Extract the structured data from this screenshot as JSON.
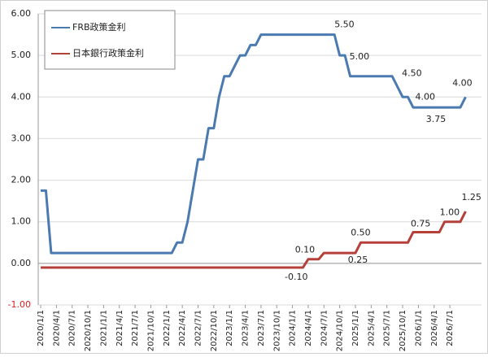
{
  "chart_data": {
    "type": "line",
    "categories": [
      "2020/1/1",
      null,
      null,
      "2020/4/1",
      null,
      null,
      "2020/7/1",
      null,
      null,
      "2020/10/1",
      null,
      null,
      "2021/1/1",
      null,
      null,
      "2021/4/1",
      null,
      null,
      "2021/7/1",
      null,
      null,
      "2021/10/1",
      null,
      null,
      "2022/1/1",
      null,
      null,
      "2022/4/1",
      null,
      null,
      "2022/7/1",
      null,
      null,
      "2022/10/1",
      null,
      null,
      "2023/1/1",
      null,
      null,
      "2023/4/1",
      null,
      null,
      "2023/7/1",
      null,
      null,
      "2023/10/1",
      null,
      null,
      "2024/1/1",
      null,
      null,
      "2024/4/1",
      null,
      null,
      "2024/7/1",
      null,
      null,
      "2024/10/1",
      null,
      null,
      "2025/1/1",
      null,
      null,
      "2025/4/1",
      null,
      null,
      "2025/7/1",
      null,
      null,
      "2025/10/1",
      null,
      null,
      "2026/1/1",
      null,
      null,
      "2026/4/1",
      null,
      null,
      "2026/7/1",
      null,
      null,
      null
    ],
    "series": [
      {
        "name": "FRB政策金利",
        "color": "#4a7ab0",
        "values": [
          1.75,
          1.75,
          0.25,
          0.25,
          0.25,
          0.25,
          0.25,
          0.25,
          0.25,
          0.25,
          0.25,
          0.25,
          0.25,
          0.25,
          0.25,
          0.25,
          0.25,
          0.25,
          0.25,
          0.25,
          0.25,
          0.25,
          0.25,
          0.25,
          0.25,
          0.25,
          0.5,
          0.5,
          1.0,
          1.75,
          2.5,
          2.5,
          3.25,
          3.25,
          4.0,
          4.5,
          4.5,
          4.75,
          5.0,
          5.0,
          5.25,
          5.25,
          5.5,
          5.5,
          5.5,
          5.5,
          5.5,
          5.5,
          5.5,
          5.5,
          5.5,
          5.5,
          5.5,
          5.5,
          5.5,
          5.5,
          5.5,
          5.0,
          5.0,
          4.5,
          4.5,
          4.5,
          4.5,
          4.5,
          4.5,
          4.5,
          4.5,
          4.5,
          4.25,
          4.0,
          4.0,
          3.75,
          3.75,
          3.75,
          3.75,
          3.75,
          3.75,
          3.75,
          3.75,
          3.75,
          3.75,
          4.0
        ],
        "value_labels": [
          null,
          null,
          null,
          null,
          null,
          null,
          null,
          null,
          null,
          null,
          null,
          null,
          null,
          null,
          null,
          null,
          null,
          null,
          null,
          null,
          null,
          null,
          null,
          null,
          null,
          null,
          null,
          null,
          null,
          null,
          null,
          null,
          null,
          null,
          null,
          null,
          null,
          null,
          null,
          null,
          null,
          null,
          null,
          null,
          null,
          null,
          null,
          null,
          null,
          null,
          null,
          null,
          null,
          null,
          null,
          null,
          "5.50",
          "5.00",
          null,
          null,
          null,
          null,
          null,
          null,
          null,
          null,
          null,
          "4.50",
          null,
          null,
          "4.00",
          null,
          null,
          null,
          null,
          "3.75",
          null,
          null,
          null,
          null,
          null,
          "4.00"
        ]
      },
      {
        "name": "日本銀行政策金利",
        "color": "#b5403a",
        "values": [
          -0.1,
          -0.1,
          -0.1,
          -0.1,
          -0.1,
          -0.1,
          -0.1,
          -0.1,
          -0.1,
          -0.1,
          -0.1,
          -0.1,
          -0.1,
          -0.1,
          -0.1,
          -0.1,
          -0.1,
          -0.1,
          -0.1,
          -0.1,
          -0.1,
          -0.1,
          -0.1,
          -0.1,
          -0.1,
          -0.1,
          -0.1,
          -0.1,
          -0.1,
          -0.1,
          -0.1,
          -0.1,
          -0.1,
          -0.1,
          -0.1,
          -0.1,
          -0.1,
          -0.1,
          -0.1,
          -0.1,
          -0.1,
          -0.1,
          -0.1,
          -0.1,
          -0.1,
          -0.1,
          -0.1,
          -0.1,
          -0.1,
          -0.1,
          -0.1,
          0.1,
          0.1,
          0.1,
          0.25,
          0.25,
          0.25,
          0.25,
          0.25,
          0.25,
          0.25,
          0.5,
          0.5,
          0.5,
          0.5,
          0.5,
          0.5,
          0.5,
          0.5,
          0.5,
          0.5,
          0.75,
          0.75,
          0.75,
          0.75,
          0.75,
          0.75,
          1.0,
          1.0,
          1.0,
          1.0,
          1.25
        ],
        "value_labels": [
          null,
          null,
          null,
          null,
          null,
          null,
          null,
          null,
          null,
          null,
          null,
          null,
          null,
          null,
          null,
          null,
          null,
          null,
          null,
          null,
          null,
          null,
          null,
          null,
          null,
          null,
          null,
          null,
          null,
          null,
          null,
          null,
          null,
          null,
          null,
          null,
          null,
          null,
          null,
          null,
          null,
          null,
          null,
          null,
          null,
          null,
          null,
          null,
          null,
          null,
          "-0.10",
          "0.10",
          null,
          null,
          null,
          null,
          null,
          null,
          null,
          null,
          "0.25",
          "0.50",
          null,
          null,
          null,
          null,
          null,
          null,
          null,
          null,
          null,
          "0.75",
          null,
          null,
          null,
          null,
          null,
          "1.00",
          null,
          null,
          null,
          "1.25"
        ]
      }
    ],
    "ylim": [
      -1,
      6
    ],
    "yticks": [
      {
        "value": -1,
        "label": "-1.00"
      },
      {
        "value": 0,
        "label": "0.00"
      },
      {
        "value": 1,
        "label": "1.00"
      },
      {
        "value": 2,
        "label": "2.00"
      },
      {
        "value": 3,
        "label": "3.00"
      },
      {
        "value": 4,
        "label": "4.00"
      },
      {
        "value": 5,
        "label": "5.00"
      },
      {
        "value": 6,
        "label": "6.00"
      }
    ],
    "grid": true,
    "legend": "upper-left"
  }
}
